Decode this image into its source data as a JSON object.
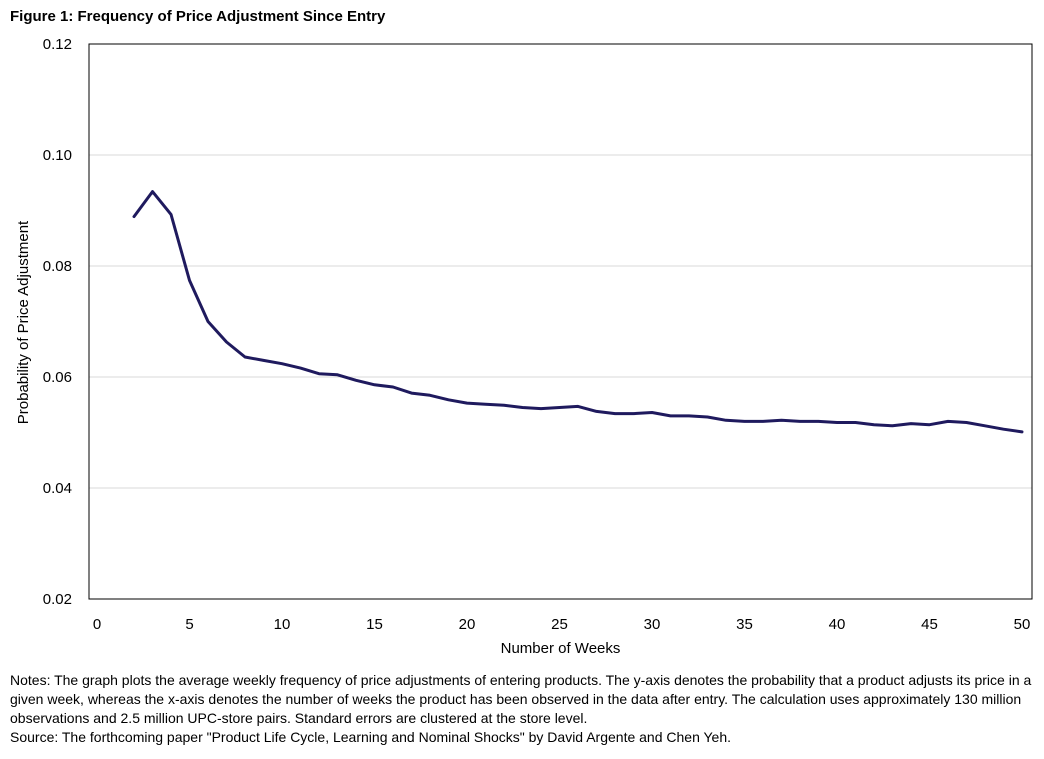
{
  "figure_title": "Figure 1: Frequency of Price Adjustment Since Entry",
  "notes": "Notes: The graph plots the average weekly frequency of price adjustments of entering products. The y-axis denotes the probability that a product adjusts its price in a given week, whereas the x-axis denotes the number of weeks the product has been observed in the data after entry. The calculation uses approximately 130 million observations and 2.5 million UPC-store pairs. Standard errors are clustered at the store level.",
  "source": "Source: The forthcoming paper \"Product Life Cycle, Learning and Nominal Shocks\" by David Argente and Chen Yeh.",
  "chart_data": {
    "type": "line",
    "title": "Figure 1: Frequency of Price Adjustment Since Entry",
    "xlabel": "Number of Weeks",
    "ylabel": "Probability of Price Adjustment",
    "xlim": [
      0,
      50
    ],
    "ylim": [
      0.02,
      0.12
    ],
    "x_ticks": [
      0,
      5,
      10,
      15,
      20,
      25,
      30,
      35,
      40,
      45,
      50
    ],
    "y_ticks": [
      0.02,
      0.04,
      0.06,
      0.08,
      0.1,
      0.12
    ],
    "y_tick_labels": [
      "0.02",
      "0.04",
      "0.06",
      "0.08",
      "0.10",
      "0.12"
    ],
    "grid": "horizontal",
    "legend": "none",
    "line_color": "#1f1a5e",
    "gridline_color": "#d9d9d9",
    "series": [
      {
        "x": [
          2,
          3,
          4,
          5,
          6,
          7,
          8,
          9,
          10,
          11,
          12,
          13,
          14,
          15,
          16,
          17,
          18,
          19,
          20,
          21,
          22,
          23,
          24,
          25,
          26,
          27,
          28,
          29,
          30,
          31,
          32,
          33,
          34,
          35,
          36,
          37,
          38,
          39,
          40,
          41,
          42,
          43,
          44,
          45,
          46,
          47,
          48,
          49,
          50
        ],
        "values": [
          0.0889,
          0.0934,
          0.0893,
          0.0774,
          0.07,
          0.0663,
          0.0636,
          0.063,
          0.0624,
          0.0616,
          0.0606,
          0.0604,
          0.0594,
          0.0586,
          0.0582,
          0.0571,
          0.0567,
          0.0559,
          0.0553,
          0.0551,
          0.0549,
          0.0545,
          0.0543,
          0.0545,
          0.0547,
          0.0538,
          0.0534,
          0.0534,
          0.0536,
          0.053,
          0.053,
          0.0528,
          0.0522,
          0.052,
          0.052,
          0.0522,
          0.052,
          0.052,
          0.0518,
          0.0518,
          0.0514,
          0.0512,
          0.0516,
          0.0514,
          0.052,
          0.0518,
          0.0512,
          0.0506,
          0.0501
        ]
      }
    ]
  }
}
